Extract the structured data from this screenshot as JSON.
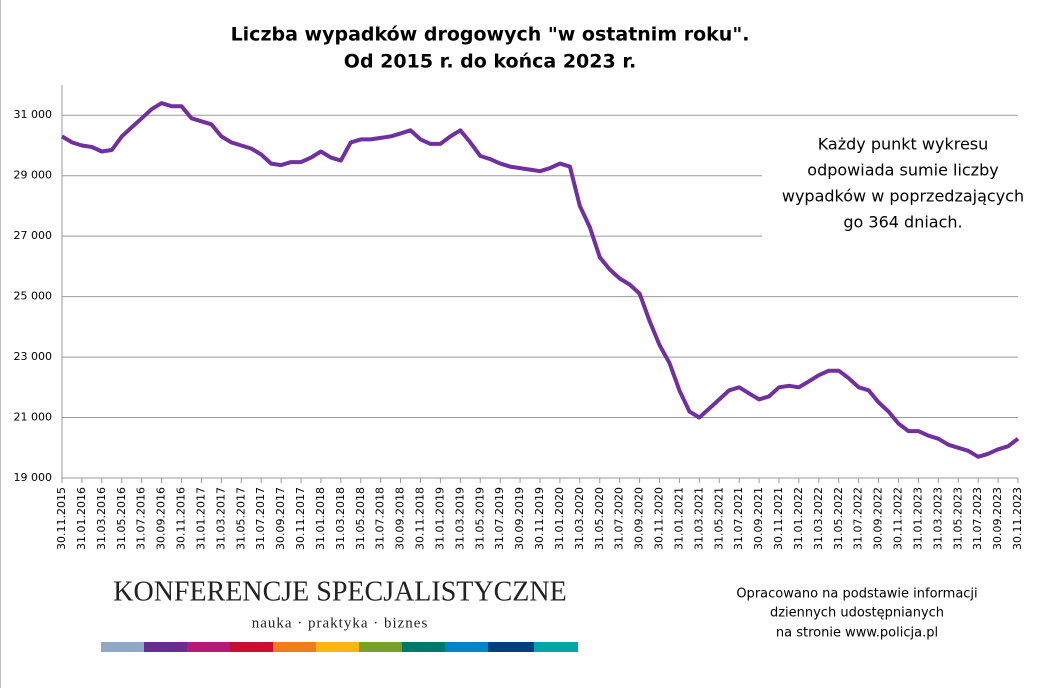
{
  "chart_data": {
    "type": "line",
    "title": "Liczba wypadków drogowych \"w ostatnim roku\".",
    "subtitle": "Od 2015 r. do końca 2023 r.",
    "annotation": [
      "Każdy punkt wykresu",
      "odpowiada sumie liczby",
      "wypadków w poprzedzających",
      "go 364 dniach."
    ],
    "logo": {
      "name": "KONFERENCJE SPECJALISTYCZNE",
      "tagline": "nauka · praktyka · biznes"
    },
    "source": [
      "Opracowano na podstawie informacji",
      "dziennych udostępnianych",
      "na stronie www.policja.pl"
    ],
    "categories": [
      "30.11.2015",
      null,
      "31.01.2016",
      null,
      "31.03.2016",
      null,
      "31.05.2016",
      null,
      "31.07.2016",
      null,
      "30.09.2016",
      null,
      "30.11.2016",
      null,
      "31.01.2017",
      null,
      "31.03.2017",
      null,
      "31.05.2017",
      null,
      "31.07.2017",
      null,
      "30.09.2017",
      null,
      "30.11.2017",
      null,
      "31.01.2018",
      null,
      "31.03.2018",
      null,
      "31.05.2018",
      null,
      "31.07.2018",
      null,
      "30.09.2018",
      null,
      "30.11.2018",
      null,
      "31.01.2019",
      null,
      "31.03.2019",
      null,
      "31.05.2019",
      null,
      "31.07.2019",
      null,
      "30.09.2019",
      null,
      "30.11.2019",
      null,
      "31.01.2020",
      null,
      "31.03.2020",
      null,
      "31.05.2020",
      null,
      "31.07.2020",
      null,
      "30.09.2020",
      null,
      "30.11.2020",
      null,
      "31.01.2021",
      null,
      "31.03.2021",
      null,
      "31.05.2021",
      null,
      "31.07.2021",
      null,
      "30.09.2021",
      null,
      "30.11.2021",
      null,
      "31.01.2022",
      null,
      "31.03.2022",
      null,
      "31.05.2022",
      null,
      "31.07.2022",
      null,
      "30.09.2022",
      null,
      "30.11.2022",
      null,
      "31.01.2023",
      null,
      "31.03.2023",
      null,
      "31.05.2023",
      null,
      "31.07.2023",
      null,
      "30.09.2023",
      null,
      "30.11.2023"
    ],
    "values": [
      30300,
      30100,
      30000,
      29950,
      29800,
      29850,
      30300,
      30600,
      30900,
      31200,
      31400,
      31300,
      31300,
      30900,
      30800,
      30700,
      30300,
      30100,
      30000,
      29900,
      29700,
      29400,
      29350,
      29450,
      29450,
      29600,
      29800,
      29600,
      29500,
      30100,
      30200,
      30200,
      30250,
      30300,
      30400,
      30500,
      30200,
      30050,
      30050,
      30300,
      30500,
      30100,
      29650,
      29550,
      29400,
      29300,
      29250,
      29200,
      29150,
      29250,
      29400,
      29300,
      28000,
      27300,
      26300,
      25900,
      25600,
      25400,
      25100,
      24200,
      23400,
      22800,
      21900,
      21200,
      21000,
      21300,
      21600,
      21900,
      22000,
      21800,
      21600,
      21700,
      22000,
      22050,
      22000,
      22200,
      22400,
      22550,
      22550,
      22300,
      22000,
      21900,
      21500,
      21200,
      20800,
      20550,
      20550,
      20400,
      20300,
      20100,
      20000,
      19900,
      19700,
      19800,
      19950,
      20050,
      20300
    ],
    "color": "#7030a0",
    "ylim": [
      19000,
      32000
    ],
    "yticks": [
      {
        "value": 19000,
        "label": "19 000"
      },
      {
        "value": 21000,
        "label": "21 000"
      },
      {
        "value": 23000,
        "label": "23 000"
      },
      {
        "value": 25000,
        "label": "25 000"
      },
      {
        "value": 27000,
        "label": "27 000"
      },
      {
        "value": 29000,
        "label": "29 000"
      },
      {
        "value": 31000,
        "label": "31 000"
      }
    ],
    "grid": true
  }
}
